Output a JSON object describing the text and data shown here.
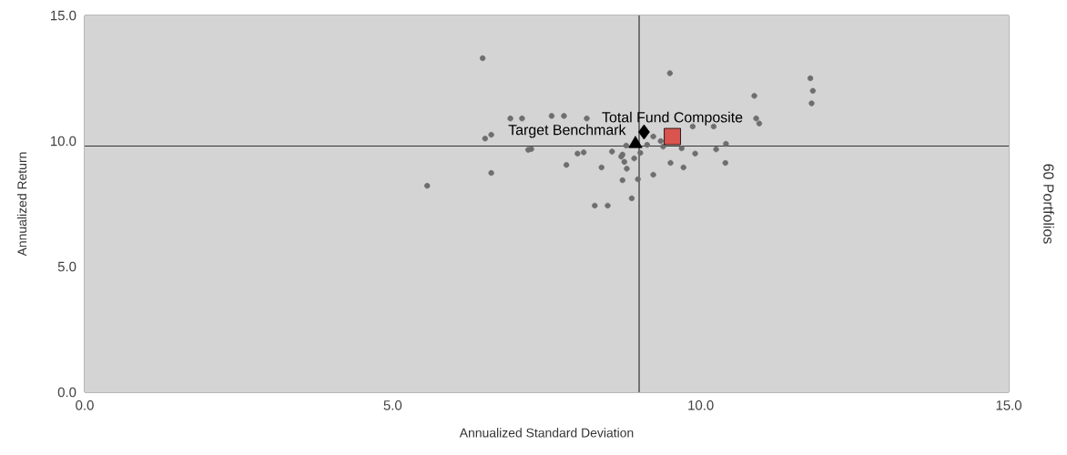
{
  "chart_data": {
    "type": "scatter",
    "xlabel": "Annualized Standard Deviation",
    "ylabel": "Annualized Return",
    "annotations": [
      "60 Portfolios"
    ],
    "xlim": [
      0,
      15
    ],
    "ylim": [
      0,
      15
    ],
    "xticks": [
      {
        "value": 0,
        "label": "0.0"
      },
      {
        "value": 5,
        "label": "5.0"
      },
      {
        "value": 10,
        "label": "10.0"
      },
      {
        "value": 15,
        "label": "15.0"
      }
    ],
    "yticks": [
      {
        "value": 0,
        "label": "0.0"
      },
      {
        "value": 5,
        "label": "5.0"
      },
      {
        "value": 10,
        "label": "10.0"
      },
      {
        "value": 15,
        "label": "15.0"
      }
    ],
    "grid": false,
    "ref_lines": [
      {
        "axis": "x",
        "value": 9.0,
        "color": "#333333"
      },
      {
        "axis": "y",
        "value": 9.8,
        "color": "#333333"
      }
    ],
    "series": [
      {
        "color": "#6e6e6e",
        "marker": "circle",
        "x": [
          6.46,
          9.5,
          11.78,
          11.82,
          11.8,
          10.87,
          10.9,
          10.95,
          6.91,
          7.1,
          7.58,
          7.78,
          8.15,
          6.5,
          6.6,
          7.2,
          7.25,
          8.0,
          8.1,
          7.82,
          8.39,
          6.6,
          5.56,
          8.56,
          8.73,
          8.76,
          8.8,
          8.73,
          8.98,
          8.88,
          8.28,
          8.49,
          8.92,
          8.79,
          8.71,
          9.13,
          9.23,
          9.35,
          9.02,
          9.87,
          10.21,
          10.41,
          10.25,
          9.91,
          9.69,
          9.39,
          9.51,
          9.72,
          10.4,
          9.23
        ],
        "values": [
          13.3,
          12.7,
          12.5,
          12.0,
          11.5,
          11.8,
          10.9,
          10.7,
          10.9,
          10.9,
          11.0,
          11.0,
          10.9,
          10.1,
          10.25,
          9.65,
          9.68,
          9.5,
          9.55,
          9.05,
          8.95,
          8.73,
          8.22,
          9.58,
          9.46,
          9.17,
          8.9,
          8.44,
          8.48,
          7.72,
          7.43,
          7.43,
          9.31,
          9.82,
          9.38,
          9.85,
          10.18,
          10.0,
          9.53,
          10.58,
          10.58,
          9.89,
          9.67,
          9.5,
          9.71,
          9.78,
          9.13,
          8.95,
          9.13,
          8.66
        ]
      },
      {
        "color": "#000000",
        "marker": "diamond",
        "x": [
          9.08
        ],
        "values": [
          10.36
        ]
      },
      {
        "name": "Target Benchmark",
        "color": "#000000",
        "marker": "triangle",
        "x": [
          8.94
        ],
        "values": [
          9.89
        ]
      },
      {
        "name": "Total Fund Composite",
        "color": "#d9534f",
        "marker": "square",
        "x": [
          9.54
        ],
        "values": [
          10.18
        ]
      }
    ]
  }
}
